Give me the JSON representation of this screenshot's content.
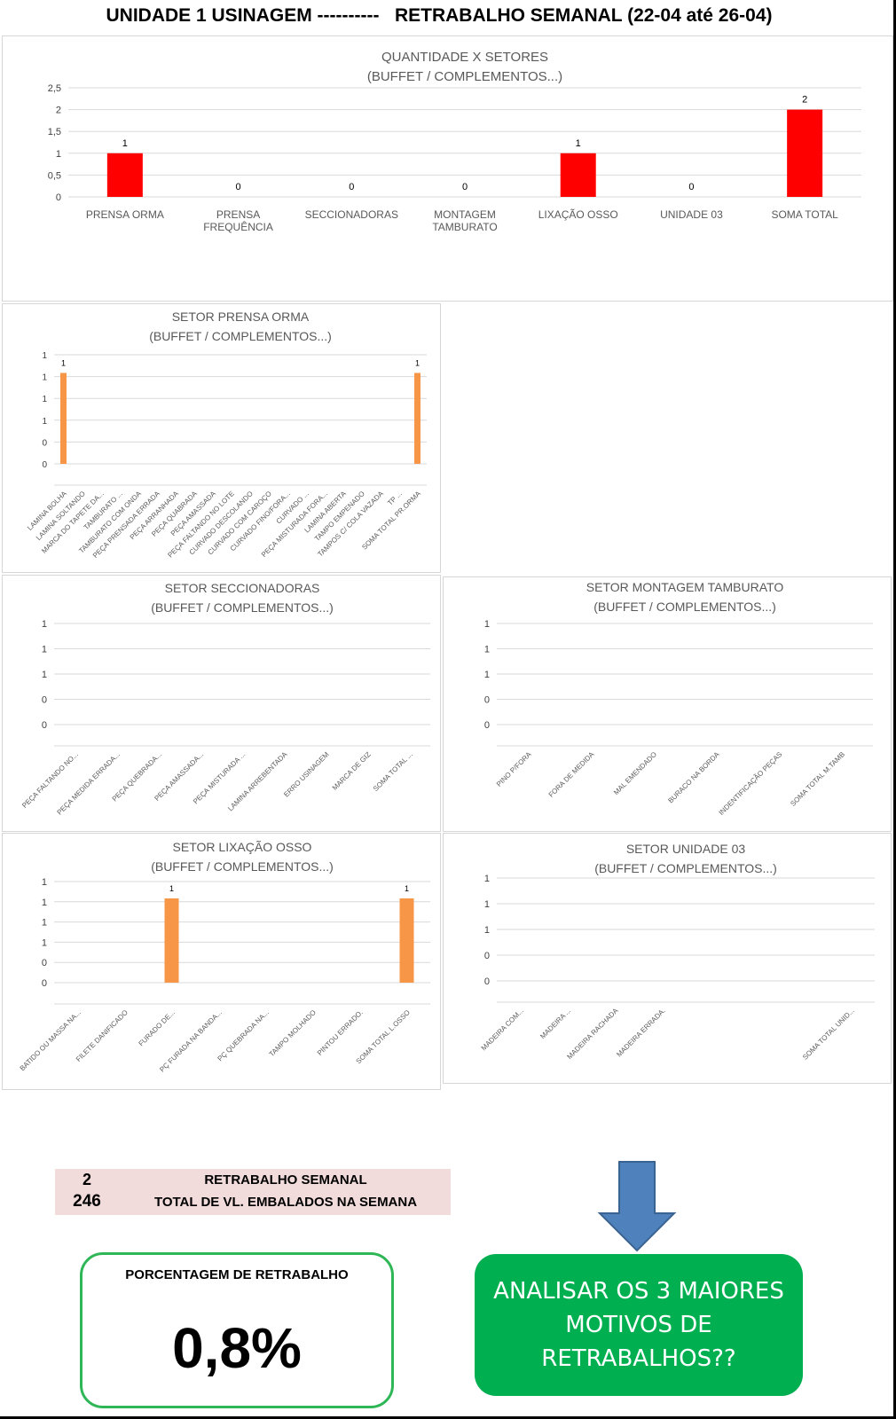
{
  "page": {
    "title": "UNIDADE 1 USINAGEM ----------   RETRABALHO SEMANAL (22-04 até 26-04)"
  },
  "colors": {
    "main_bar": "#ff0000",
    "sector_bar": "#f79646",
    "grid": "#d9d9d9",
    "summary_bg": "#f2dcdb",
    "cta_bg": "#00b050",
    "arrow": "#4f81bd"
  },
  "chart_data": [
    {
      "id": "quantidade",
      "type": "bar",
      "title": "QUANTIDADE X SETORES",
      "subtitle": "(BUFFET / COMPLEMENTOS...)",
      "categories": [
        "PRENSA ORMA",
        "PRENSA FREQUÊNCIA",
        "SECCIONADORAS",
        "MONTAGEM TAMBURATO",
        "LIXAÇÃO OSSO",
        "UNIDADE 03",
        "SOMA TOTAL"
      ],
      "values": [
        1,
        0,
        0,
        0,
        1,
        0,
        2
      ],
      "data_labels": [
        "1",
        "0",
        "0",
        "0",
        "1",
        "0",
        "2"
      ],
      "ylim": [
        0,
        2.5
      ],
      "yticks": [
        "0",
        "0,5",
        "1",
        "1,5",
        "2",
        "2,5"
      ],
      "grid": true
    },
    {
      "id": "prensa",
      "type": "bar",
      "title": "SETOR PRENSA ORMA",
      "subtitle": "(BUFFET / COMPLEMENTOS...)",
      "categories": [
        "LAMINA BOLHA",
        "LAMINA SOLTANDO",
        "MARCA DO TAPETE DA...",
        "TAMBURATO ...",
        "TAMBURATO COM ONDA",
        "PEÇA PRENSADA ERRADA",
        "PEÇA ARRANHADA",
        "PEÇA QUABRADA",
        "PEÇA AMASSADA",
        "PEÇA FALTANDO NO LOTE",
        "CURVADO DESCOLANDO",
        "CURVADO COM CAROÇO",
        "CURVADO FINO/FORA...",
        "CURVADO ...",
        "PEÇA MISTURADA FORA...",
        "LAMINA ABERTA",
        "TAMPO EMPENADO",
        "TAMPOS C/ COLA VAZADA",
        "TP ...",
        "SOMA TOTAL PR.ORMA"
      ],
      "values": [
        1,
        0,
        0,
        0,
        0,
        0,
        0,
        0,
        0,
        0,
        0,
        0,
        0,
        0,
        0,
        0,
        0,
        0,
        0,
        1
      ],
      "data_labels": [
        "1",
        "",
        "",
        "",
        "",
        "",
        "",
        "",
        "",
        "",
        "",
        "",
        "",
        "",
        "",
        "",
        "",
        "",
        "",
        "1"
      ],
      "ylim": [
        0,
        1.2
      ],
      "yticks": [
        "0",
        "0",
        "1",
        "1",
        "1",
        "1"
      ],
      "grid": true
    },
    {
      "id": "seccionadoras",
      "type": "bar",
      "title": "SETOR SECCIONADORAS",
      "subtitle": "(BUFFET / COMPLEMENTOS...)",
      "categories": [
        "PEÇA FALTANDO NO...",
        "PEÇA MEDIDA ERRADA...",
        "PEÇA QUEBRADA...",
        "PEÇA AMASSADA...",
        "PEÇA MISTURADA ...",
        "LAMINA ARREBENTADA",
        "ERRO USINAGEM",
        "MARCA DE GIZ",
        "SOMA TOTAL ..."
      ],
      "values": [
        0,
        0,
        0,
        0,
        0,
        0,
        0,
        0,
        0
      ],
      "ylim": [
        0,
        1
      ],
      "yticks": [
        "0",
        "0",
        "1",
        "1",
        "1"
      ],
      "grid": true
    },
    {
      "id": "montagem",
      "type": "bar",
      "title": "SETOR MONTAGEM TAMBURATO",
      "subtitle": "(BUFFET / COMPLEMENTOS...)",
      "categories": [
        "PINO P/FORA",
        "FORA DE MEDIDA",
        "MAL EMENDADO",
        "BURACO NA BORDA",
        "INDENTIFICAÇÃO PEÇAS",
        "SOMA TOTAL M.TAMB"
      ],
      "values": [
        0,
        0,
        0,
        0,
        0,
        0
      ],
      "ylim": [
        0,
        1
      ],
      "yticks": [
        "0",
        "0",
        "1",
        "1",
        "1"
      ],
      "grid": true
    },
    {
      "id": "lixacao",
      "type": "bar",
      "title": "SETOR LIXAÇÃO OSSO",
      "subtitle": "(BUFFET / COMPLEMENTOS...)",
      "categories": [
        "BATIDO OU MASSA NA...",
        "FILETE DANIFICADO",
        "FURADO DE...",
        "PÇ FURADA NA BANDA...",
        "PÇ QUEBRADA NA...",
        "TAMPO MOLHADO",
        "PINTOU ERRADO.",
        "SOMA TOTAL L.OSSO"
      ],
      "values": [
        0,
        0,
        1,
        0,
        0,
        0,
        0,
        1
      ],
      "data_labels": [
        "",
        "",
        "1",
        "",
        "",
        "",
        "",
        "1"
      ],
      "ylim": [
        0,
        1.2
      ],
      "yticks": [
        "0",
        "0",
        "1",
        "1",
        "1",
        "1"
      ],
      "grid": true
    },
    {
      "id": "unidade",
      "type": "bar",
      "title": "SETOR UNIDADE 03",
      "subtitle": "(BUFFET / COMPLEMENTOS...)",
      "categories": [
        "MADEIRA COM...",
        "MADEIRA ...",
        "MADEIRA RACHADA",
        "MADEIRA ERRADA.",
        "",
        "",
        "",
        "SOMA TOTAL UNID..."
      ],
      "values": [
        0,
        0,
        0,
        0,
        0,
        0,
        0,
        0
      ],
      "ylim": [
        0,
        1
      ],
      "yticks": [
        "0",
        "0",
        "1",
        "1",
        "1"
      ],
      "grid": true
    }
  ],
  "summary": {
    "retrabalho_value": "2",
    "retrabalho_label": "RETRABALHO SEMANAL",
    "total_value": "246",
    "total_label": "TOTAL DE VL. EMBALADOS NA SEMANA"
  },
  "percent": {
    "label": "PORCENTAGEM DE RETRABALHO",
    "value": "0,8%"
  },
  "call_to_action": "ANALISAR OS 3 MAIORES MOTIVOS DE RETRABALHOS??"
}
